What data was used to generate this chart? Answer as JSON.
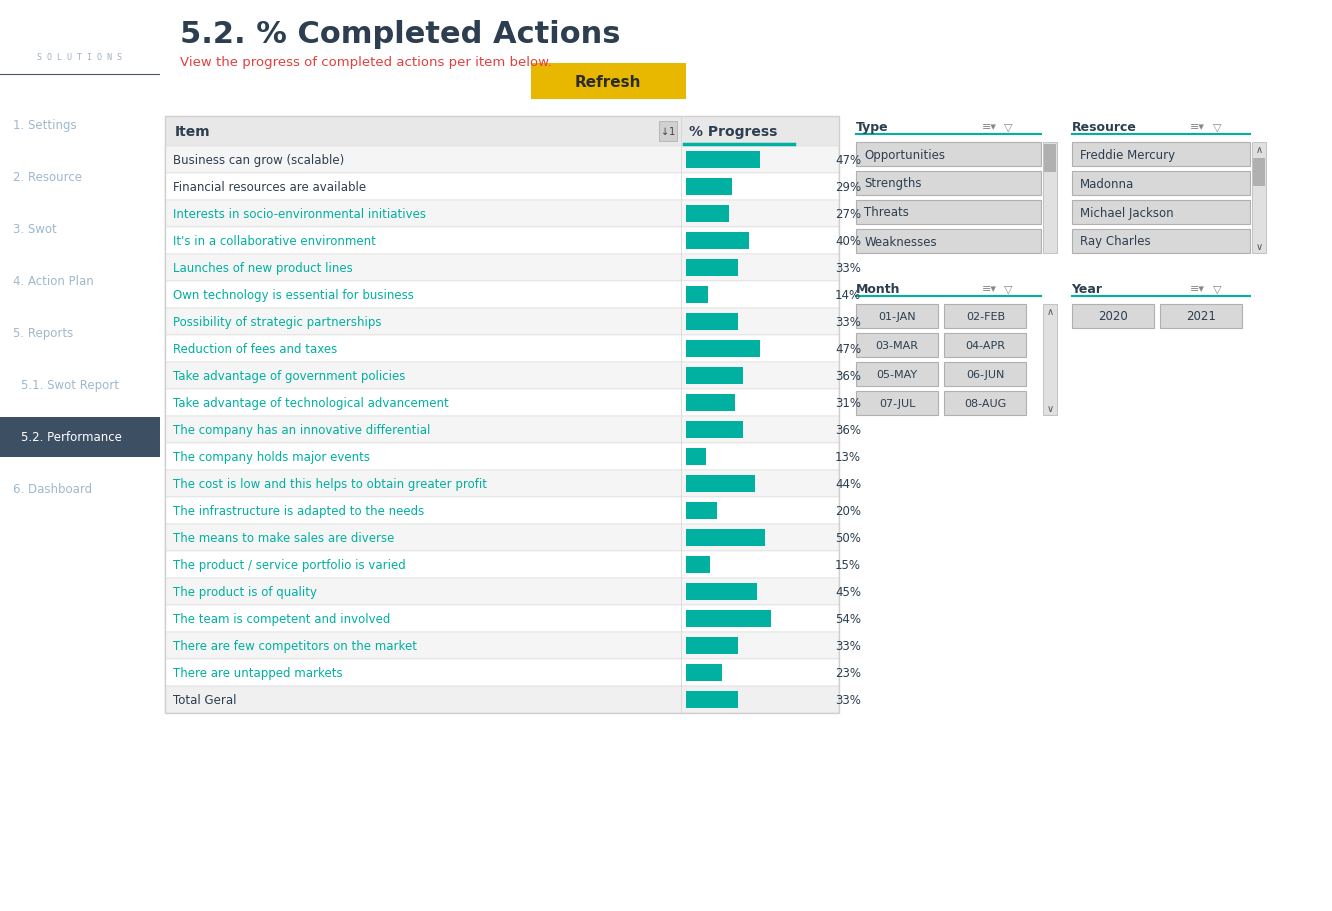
{
  "title": "5.2. % Completed Actions",
  "subtitle": "View the progress of completed actions per item below.",
  "sidebar_bg": "#2d3748",
  "sidebar_text_color": "#a0aec0",
  "sidebar_items": [
    "1. Settings",
    "2. Resource",
    "3. Swot",
    "4. Action Plan",
    "5. Reports",
    "5.1. Swot Report",
    "5.2. Performance",
    "6. Dashboard"
  ],
  "sidebar_active": "5.2. Performance",
  "table_items": [
    "Business can grow (scalable)",
    "Financial resources are available",
    "Interests in socio-environmental initiatives",
    "It's in a collaborative environment",
    "Launches of new product lines",
    "Own technology is essential for business",
    "Possibility of strategic partnerships",
    "Reduction of fees and taxes",
    "Take advantage of government policies",
    "Take advantage of technological advancement",
    "The company has an innovative differential",
    "The company holds major events",
    "The cost is low and this helps to obtain greater profit",
    "The infrastructure is adapted to the needs",
    "The means to make sales are diverse",
    "The product / service portfolio is varied",
    "The product is of quality",
    "The team is competent and involved",
    "There are few competitors on the market",
    "There are untapped markets",
    "Total Geral"
  ],
  "progress_values": [
    47,
    29,
    27,
    40,
    33,
    14,
    33,
    47,
    36,
    31,
    36,
    13,
    44,
    20,
    50,
    15,
    45,
    54,
    33,
    23,
    33
  ],
  "teal_items_indices": [
    2,
    3,
    4,
    5,
    6,
    7,
    8,
    9,
    10,
    11,
    12,
    13,
    14,
    15,
    16,
    17,
    18,
    19
  ],
  "bar_color": "#00b0a0",
  "type_label": "Type",
  "type_items": [
    "Opportunities",
    "Strengths",
    "Threats",
    "Weaknesses"
  ],
  "resource_label": "Resource",
  "resource_items": [
    "Freddie Mercury",
    "Madonna",
    "Michael Jackson",
    "Ray Charles"
  ],
  "month_label": "Month",
  "month_items": [
    "01-JAN",
    "02-FEB",
    "03-MAR",
    "04-APR",
    "05-MAY",
    "06-JUN",
    "07-JUL",
    "08-AUG"
  ],
  "year_label": "Year",
  "year_items": [
    "2020",
    "2021"
  ],
  "refresh_button_color": "#e8b800",
  "refresh_button_text": "Refresh",
  "teal_underline": "#00b0a0",
  "main_bg": "#ffffff",
  "row_alt_bg": "#f5f5f5",
  "row_bg": "#ffffff",
  "table_border": "#d0d0d0",
  "text_dark": "#2c3e50",
  "title_color": "#2c3e50",
  "subtitle_color": "#e53e3e",
  "active_sidebar_bg": "#3d4f63",
  "sidebar_menu_color": "#a0b8cc",
  "sidebar_active_color": "#ffffff"
}
